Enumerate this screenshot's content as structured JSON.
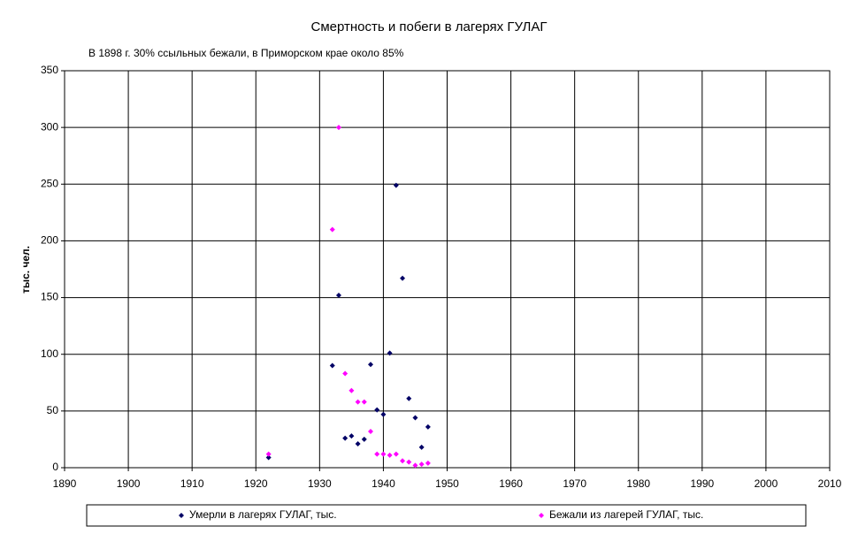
{
  "chart_data": {
    "type": "scatter",
    "title": "Смертность и побеги в лагерях ГУЛАГ",
    "annotation": "В 1898 г. 30% ссыльных бежали, в Приморском крае около 85%",
    "y_label": "тыс. чел.",
    "x": [
      1922,
      1932,
      1933,
      1934,
      1935,
      1936,
      1937,
      1938,
      1939,
      1940,
      1941,
      1942,
      1943,
      1944,
      1945,
      1946,
      1947
    ],
    "series": [
      {
        "name": "Умерли в лагерях ГУЛАГ, тыс.",
        "color": "#000066",
        "values": [
          9,
          90,
          152,
          26,
          28,
          21,
          25,
          91,
          51,
          47,
          101,
          249,
          167,
          61,
          44,
          18,
          36
        ]
      },
      {
        "name": "Бежали из лагерей ГУЛАГ, тыс.",
        "color": "#ff00ff",
        "values": [
          12,
          210,
          300,
          83,
          68,
          58,
          58,
          32,
          12,
          12,
          11,
          12,
          6,
          5,
          2,
          3,
          4
        ]
      }
    ],
    "xlim": [
      1890,
      2010
    ],
    "xticks": [
      1890,
      1900,
      1910,
      1920,
      1930,
      1940,
      1950,
      1960,
      1970,
      1980,
      1990,
      2000,
      2010
    ],
    "ylim": [
      0,
      350
    ],
    "yticks": [
      0,
      50,
      100,
      150,
      200,
      250,
      300,
      350
    ],
    "grid": true,
    "legend": "bottom"
  }
}
